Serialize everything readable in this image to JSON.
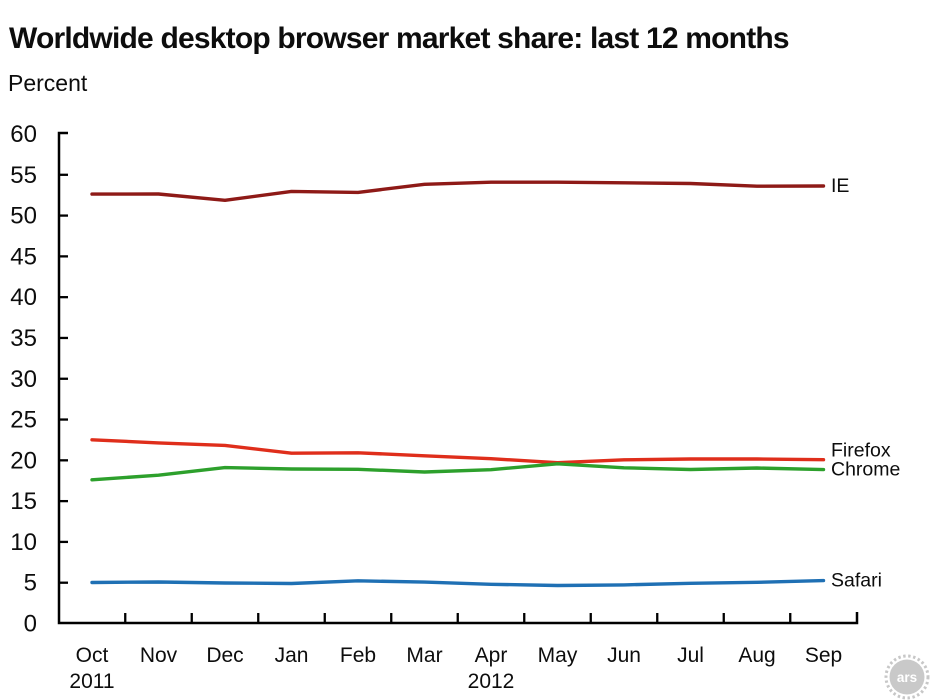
{
  "page": {
    "title": "Worldwide desktop browser market share: last 12 months",
    "subtitle": "Percent"
  },
  "branding": {
    "logo_text": "ars"
  },
  "chart_data": {
    "type": "line",
    "title": "Worldwide desktop browser market share: last 12 months",
    "subtitle": "Percent",
    "xlabel": "",
    "ylabel": "Percent",
    "ylim": [
      0,
      60
    ],
    "ytick_step": 5,
    "grid": false,
    "legend_position": "line-end-labels",
    "categories": [
      "Oct",
      "Nov",
      "Dec",
      "Jan",
      "Feb",
      "Mar",
      "Apr",
      "May",
      "Jun",
      "Jul",
      "Aug",
      "Sep"
    ],
    "year_labels": [
      {
        "index": 0,
        "text": "2011"
      },
      {
        "index": 6,
        "text": "2012"
      }
    ],
    "series": [
      {
        "name": "IE",
        "color": "#8e1a17",
        "values": [
          52.63,
          52.64,
          51.87,
          52.96,
          52.84,
          53.83,
          54.09,
          54.09,
          54.02,
          53.93,
          53.6,
          53.63
        ]
      },
      {
        "name": "Firefox",
        "color": "#df2e1b",
        "values": [
          22.52,
          22.14,
          21.83,
          20.88,
          20.92,
          20.55,
          20.2,
          19.71,
          20.06,
          20.16,
          20.16,
          20.08
        ]
      },
      {
        "name": "Chrome",
        "color": "#2da02c",
        "values": [
          17.62,
          18.18,
          19.11,
          18.94,
          18.9,
          18.57,
          18.85,
          19.58,
          19.08,
          18.88,
          19.06,
          18.86
        ]
      },
      {
        "name": "Safari",
        "color": "#1f70b4",
        "values": [
          5.03,
          5.09,
          4.97,
          4.9,
          5.24,
          5.07,
          4.81,
          4.66,
          4.73,
          4.93,
          5.05,
          5.26
        ]
      }
    ],
    "axis_color": "#000000",
    "text_color": "#0d0d0d"
  }
}
